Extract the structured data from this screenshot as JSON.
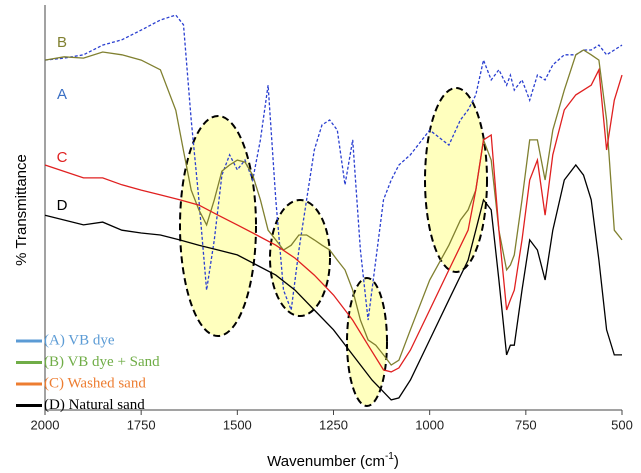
{
  "chart_data": {
    "type": "line",
    "x_label": {
      "text": "Wavenumber (cm",
      "sup": "-1",
      "tail": ")"
    },
    "y_label": "% Transmittance",
    "xlim": [
      2000,
      500
    ],
    "xticks": [
      2000,
      1750,
      1500,
      1250,
      1000,
      750,
      500
    ],
    "ylim": [
      0,
      100
    ],
    "legend": "lower left",
    "annotations": [
      {
        "text": "B",
        "color": "#808030"
      },
      {
        "text": "A",
        "color": "#3a6fc4"
      },
      {
        "text": "C",
        "color": "#e02020"
      },
      {
        "text": "D",
        "color": "#000000"
      }
    ],
    "series": [
      {
        "name": "(A) VB dye",
        "color": "#2a3fd0",
        "legend_color": "#5b9bd5",
        "dashed": true,
        "x": [
          2000,
          1950,
          1900,
          1850,
          1800,
          1750,
          1700,
          1660,
          1640,
          1620,
          1600,
          1580,
          1560,
          1540,
          1520,
          1500,
          1480,
          1460,
          1440,
          1420,
          1400,
          1380,
          1360,
          1340,
          1320,
          1300,
          1280,
          1260,
          1240,
          1220,
          1200,
          1180,
          1160,
          1140,
          1120,
          1100,
          1080,
          1050,
          1000,
          950,
          920,
          900,
          880,
          860,
          840,
          820,
          800,
          790,
          780,
          760,
          740,
          720,
          700,
          680,
          650,
          620,
          600,
          580,
          560,
          540,
          520,
          500
        ],
        "values": [
          86.4,
          86.9,
          87.7,
          90.1,
          91.4,
          93.8,
          96.3,
          97.5,
          95.1,
          71.6,
          51.9,
          29.6,
          42,
          58,
          63,
          59.3,
          61.7,
          56.8,
          66.7,
          80.2,
          51.9,
          29.6,
          24.7,
          39.5,
          51.9,
          64.2,
          70.4,
          71.6,
          69.1,
          55.6,
          66.7,
          39.5,
          22.2,
          37,
          51.9,
          56.8,
          60.5,
          63,
          69.1,
          65.4,
          71.6,
          74.1,
          77.8,
          86.4,
          81.5,
          84,
          80.2,
          82.7,
          79,
          81.5,
          76.5,
          82.7,
          81.5,
          85.2,
          87.7,
          87.7,
          88.9,
          88.9,
          90.1,
          87.7,
          88.9,
          90.1
        ]
      },
      {
        "name": "(B) VB dye + Sand",
        "color": "#808030",
        "legend_color": "#70ad47",
        "dashed": false,
        "x": [
          2000,
          1950,
          1900,
          1850,
          1800,
          1750,
          1700,
          1660,
          1640,
          1620,
          1600,
          1580,
          1560,
          1540,
          1520,
          1500,
          1480,
          1460,
          1440,
          1420,
          1400,
          1380,
          1360,
          1340,
          1320,
          1300,
          1280,
          1260,
          1240,
          1220,
          1200,
          1180,
          1160,
          1140,
          1120,
          1100,
          1080,
          1050,
          1000,
          950,
          920,
          900,
          880,
          860,
          840,
          820,
          800,
          790,
          780,
          760,
          740,
          720,
          700,
          680,
          650,
          620,
          600,
          580,
          560,
          540,
          520,
          500
        ],
        "values": [
          86.4,
          87.2,
          86.9,
          88.4,
          87.7,
          86.4,
          84,
          74,
          64,
          54.3,
          49.4,
          45.7,
          51.9,
          59,
          60.5,
          61.7,
          61.2,
          58,
          51.9,
          44.4,
          42,
          39.5,
          40.7,
          43.2,
          43.2,
          42,
          40.7,
          39.5,
          37,
          34.6,
          29.6,
          22.2,
          17.3,
          16,
          13.6,
          11.1,
          12.3,
          19.8,
          32.1,
          40.7,
          46.9,
          49.4,
          54.3,
          66.7,
          61.7,
          44.4,
          34.6,
          35.8,
          38.3,
          51.9,
          66.7,
          66.7,
          56.8,
          69.1,
          79,
          87.7,
          88.9,
          87.7,
          86.4,
          71.6,
          44.4,
          42
        ]
      },
      {
        "name": "(C) Washed sand",
        "color": "#e02020",
        "legend_color": "#ed7d31",
        "dashed": false,
        "x": [
          2000,
          1900,
          1850,
          1800,
          1750,
          1700,
          1650,
          1600,
          1550,
          1500,
          1450,
          1400,
          1350,
          1300,
          1250,
          1200,
          1160,
          1120,
          1100,
          1080,
          1050,
          1000,
          950,
          900,
          880,
          860,
          840,
          820,
          800,
          790,
          780,
          760,
          740,
          720,
          700,
          680,
          650,
          620,
          600,
          580,
          560,
          540,
          520,
          500
        ],
        "values": [
          60.5,
          57.3,
          57.3,
          55.6,
          54.3,
          53.1,
          51.9,
          50.6,
          48.1,
          45.7,
          43.2,
          40.7,
          37.5,
          33.3,
          28.4,
          22.2,
          16,
          9.9,
          9.4,
          10.4,
          14.8,
          24.7,
          34.6,
          44.4,
          54.3,
          66.7,
          67.9,
          44.4,
          24.7,
          27.2,
          29.6,
          42,
          56.8,
          61.7,
          48.1,
          63,
          74.1,
          77.8,
          79,
          80.2,
          84,
          64.2,
          76.5,
          82.7
        ]
      },
      {
        "name": "(D) Natural sand",
        "color": "#000000",
        "legend_color": "#000000",
        "dashed": false,
        "x": [
          2000,
          1900,
          1850,
          1800,
          1750,
          1700,
          1650,
          1600,
          1550,
          1500,
          1450,
          1400,
          1350,
          1300,
          1250,
          1200,
          1150,
          1100,
          1080,
          1050,
          1000,
          950,
          900,
          880,
          860,
          840,
          820,
          800,
          790,
          780,
          760,
          740,
          720,
          700,
          680,
          650,
          620,
          600,
          580,
          560,
          540,
          520,
          500
        ],
        "values": [
          48.1,
          45.7,
          46.4,
          44.4,
          43.7,
          43.2,
          42,
          40.7,
          39.5,
          38.3,
          35.8,
          33.3,
          29.6,
          24.7,
          19.8,
          13.6,
          7.4,
          2.5,
          3,
          7.4,
          17.3,
          27.2,
          37,
          44.4,
          51.9,
          49.4,
          32.1,
          13.6,
          16,
          16,
          29.6,
          42,
          39.5,
          32.1,
          44.4,
          56.8,
          60.5,
          58,
          51.9,
          37,
          19.8,
          13.6,
          13.6
        ]
      }
    ]
  }
}
